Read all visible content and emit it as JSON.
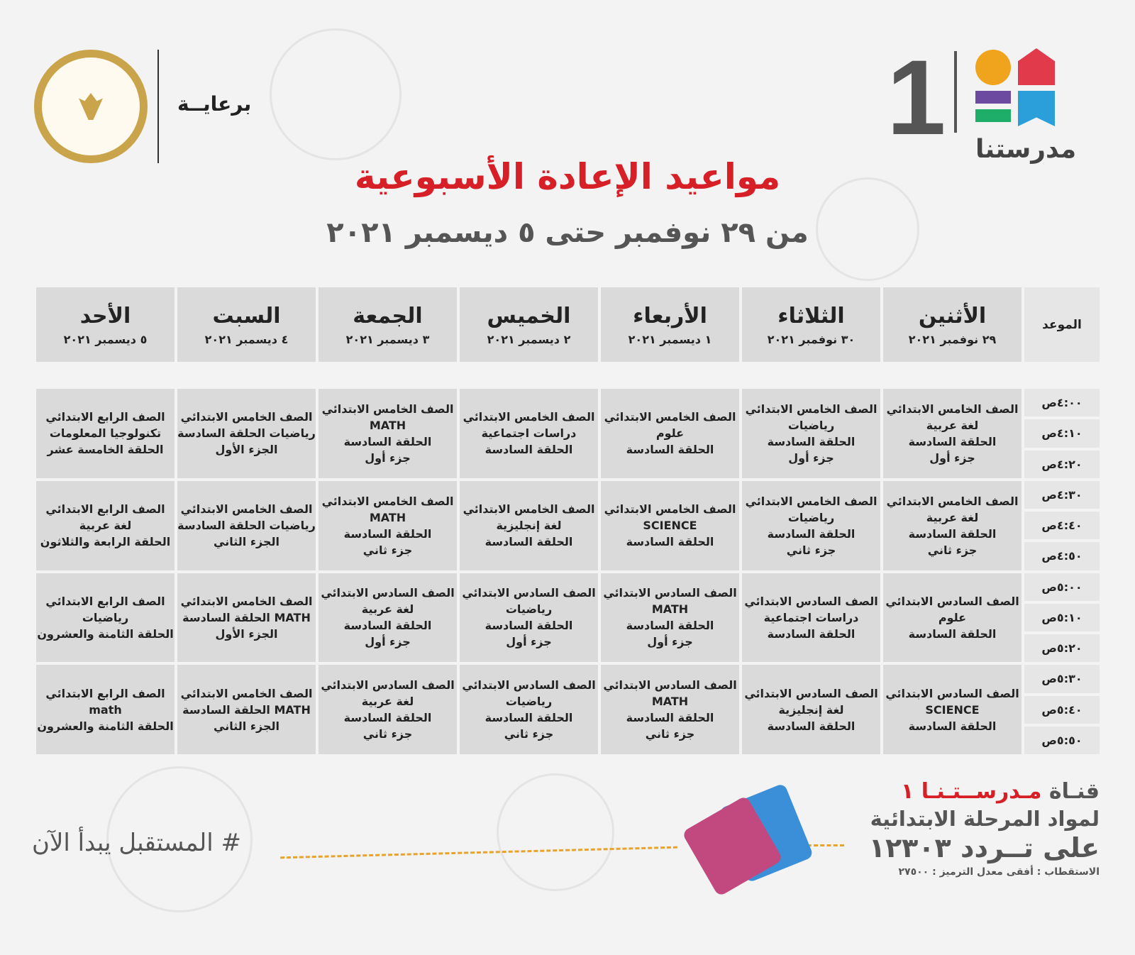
{
  "sponsor": {
    "label": "برعايــة"
  },
  "brand": {
    "number": "1",
    "name": "مدرستنا"
  },
  "title": "مواعيد الإعادة الأسبوعية",
  "subtitle": "من ٢٩ نوفمبر حتى ٥ ديسمبر ٢٠٢١",
  "table": {
    "time_header": "الموعد",
    "days": [
      {
        "name": "الأثنين",
        "date": "٢٩ نوفمبر ٢٠٢١"
      },
      {
        "name": "الثلاثاء",
        "date": "٣٠ نوفمبر ٢٠٢١"
      },
      {
        "name": "الأربعاء",
        "date": "١ ديسمبر ٢٠٢١"
      },
      {
        "name": "الخميس",
        "date": "٢ ديسمبر ٢٠٢١"
      },
      {
        "name": "الجمعة",
        "date": "٣ ديسمبر ٢٠٢١"
      },
      {
        "name": "السبت",
        "date": "٤ ديسمبر ٢٠٢١"
      },
      {
        "name": "الأحد",
        "date": "٥ ديسمبر ٢٠٢١"
      }
    ],
    "times": [
      "٤:٠٠ص",
      "٤:١٠ص",
      "٤:٢٠ص",
      "٤:٣٠ص",
      "٤:٤٠ص",
      "٤:٥٠ص",
      "٥:٠٠ص",
      "٥:١٠ص",
      "٥:٢٠ص",
      "٥:٣٠ص",
      "٥:٤٠ص",
      "٥:٥٠ص"
    ],
    "schedule": [
      [
        [
          "الصف الخامس الابتدائي",
          "لغة عربية",
          "الحلقة السادسة",
          "جزء أول"
        ],
        [
          "الصف الخامس الابتدائي",
          "لغة عربية",
          "الحلقة السادسة",
          "جزء ثاني"
        ],
        [
          "الصف السادس الابتدائي",
          "علوم",
          "الحلقة السادسة"
        ],
        [
          "الصف السادس الابتدائي",
          "SCIENCE",
          "الحلقة السادسة"
        ]
      ],
      [
        [
          "الصف الخامس الابتدائي",
          "رياضيات",
          "الحلقة السادسة",
          "جزء أول"
        ],
        [
          "الصف الخامس الابتدائي",
          "رياضيات",
          "الحلقة السادسة",
          "جزء ثاني"
        ],
        [
          "الصف السادس الابتدائي",
          "دراسات اجتماعية",
          "الحلقة السادسة"
        ],
        [
          "الصف السادس الابتدائي",
          "لغة إنجليزية",
          "الحلقة السادسة"
        ]
      ],
      [
        [
          "الصف الخامس الابتدائي",
          "علوم",
          "الحلقة السادسة"
        ],
        [
          "الصف الخامس الابتدائي",
          "SCIENCE",
          "الحلقة السادسة"
        ],
        [
          "الصف السادس الابتدائي",
          "MATH",
          "الحلقة السادسة",
          "جزء أول"
        ],
        [
          "الصف السادس الابتدائي",
          "MATH",
          "الحلقة السادسة",
          "جزء ثاني"
        ]
      ],
      [
        [
          "الصف الخامس الابتدائي",
          "دراسات اجتماعية",
          "الحلقة السادسة"
        ],
        [
          "الصف الخامس الابتدائي",
          "لغة إنجليزية",
          "الحلقة السادسة"
        ],
        [
          "الصف السادس الابتدائي",
          "رياضيات",
          "الحلقة السادسة",
          "جزء أول"
        ],
        [
          "الصف السادس الابتدائي",
          "رياضيات",
          "الحلقة السادسة",
          "جزء ثاني"
        ]
      ],
      [
        [
          "الصف الخامس الابتدائي",
          "MATH",
          "الحلقة السادسة",
          "جزء أول"
        ],
        [
          "الصف الخامس الابتدائي",
          "MATH",
          "الحلقة السادسة",
          "جزء ثاني"
        ],
        [
          "الصف السادس الابتدائي",
          "لغة عربية",
          "الحلقة السادسة",
          "جزء أول"
        ],
        [
          "الصف السادس الابتدائي",
          "لغة عربية",
          "الحلقة السادسة",
          "جزء ثاني"
        ]
      ],
      [
        [
          "الصف الخامس الابتدائي",
          "رياضيات   الحلقة السادسة",
          "الجزء الأول"
        ],
        [
          "الصف الخامس الابتدائي",
          "رياضيات   الحلقة السادسة",
          "الجزء الثاني"
        ],
        [
          "الصف الخامس الابتدائي",
          "MATH   الحلقة السادسة",
          "الجزء الأول"
        ],
        [
          "الصف الخامس الابتدائي",
          "MATH   الحلقة السادسة",
          "الجزء الثاني"
        ]
      ],
      [
        [
          "الصف الرابع الابتدائي",
          "تكنولوجيا المعلومات",
          "الحلقة الخامسة عشر"
        ],
        [
          "الصف الرابع الابتدائي",
          "لغة عربية",
          "الحلقة الرابعة والثلاثون"
        ],
        [
          "الصف الرابع الابتدائي",
          "رياضيات",
          "الحلقة الثامنة والعشرون"
        ],
        [
          "الصف الرابع الابتدائي",
          "math",
          "الحلقة الثامنة والعشرون"
        ]
      ]
    ]
  },
  "footer": {
    "channel_prefix": "قنـاة ",
    "channel_name": "مـدرســتـنـا ١",
    "subjects": "لمواد المرحلة الابتدائية",
    "frequency": "على تــردد ١٢٣٠٣",
    "technical": "الاستقطاب : أفقى معدل الترميز : ٢٧٥٠٠",
    "slogan": "# المستقبل يبدأ الآن"
  },
  "colors": {
    "accent_red": "#d61f26",
    "cell_gray": "#dadada",
    "dash_orange": "#e9a22a"
  }
}
